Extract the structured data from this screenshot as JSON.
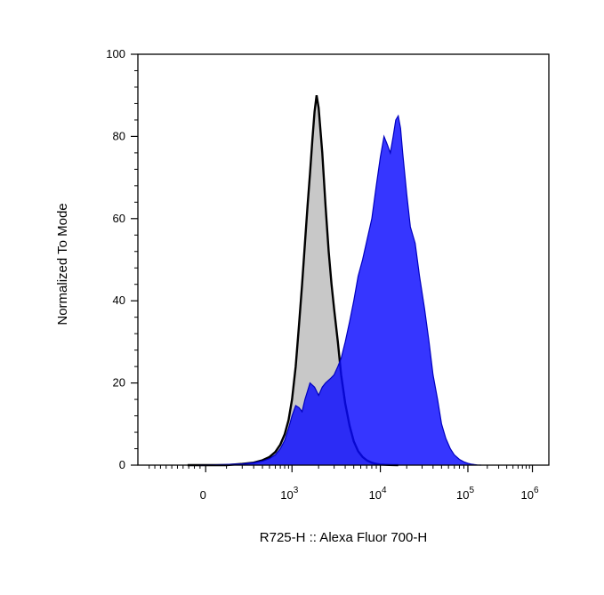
{
  "chart_data": {
    "type": "area",
    "xlabel": "R725-H :: Alexa Fluor 700-H",
    "ylabel": "Normalized To Mode",
    "x_scale": "biexponential",
    "ylim": [
      0,
      100
    ],
    "yticks": [
      0,
      20,
      40,
      60,
      80,
      100
    ],
    "xticks": [
      {
        "base": "0",
        "exp": ""
      },
      {
        "base": "10",
        "exp": "3"
      },
      {
        "base": "10",
        "exp": "4"
      },
      {
        "base": "10",
        "exp": "5"
      },
      {
        "base": "10",
        "exp": "6"
      }
    ],
    "grid": false,
    "legend": "none",
    "series": [
      {
        "color": "#c8c8c8",
        "outline": "#000000",
        "x": [
          -800,
          -500,
          -300,
          -100,
          0,
          100,
          200,
          300,
          400,
          500,
          600,
          700,
          800,
          900,
          1000,
          1100,
          1200,
          1300,
          1400,
          1500,
          1600,
          1700,
          1800,
          1900,
          2000,
          2200,
          2400,
          2600,
          2800,
          3000,
          3300,
          3600,
          4000,
          4500,
          5000,
          5600,
          6300,
          7100,
          8000,
          9000,
          10000,
          11200,
          12600,
          14000,
          16000
        ],
        "y": [
          0,
          0,
          0,
          0,
          0,
          0,
          0.3,
          0.6,
          1.2,
          2,
          3.2,
          5,
          7.5,
          11,
          16,
          24,
          34,
          44,
          54,
          63,
          71,
          79,
          86,
          90,
          87,
          76,
          63,
          52,
          44,
          38,
          30,
          22,
          15,
          9.5,
          5.8,
          3.4,
          2,
          1.1,
          0.6,
          0.3,
          0.15,
          0.08,
          0.04,
          0.02,
          0
        ]
      },
      {
        "color": "#0a0aff",
        "outline": "#0000c0",
        "x": [
          -300,
          0,
          200,
          300,
          400,
          500,
          600,
          700,
          800,
          900,
          1000,
          1100,
          1200,
          1300,
          1400,
          1500,
          1600,
          1800,
          2000,
          2200,
          2400,
          2700,
          3000,
          3300,
          3600,
          4000,
          4500,
          5000,
          5600,
          6300,
          7100,
          8000,
          9000,
          10000,
          11000,
          12000,
          13000,
          14000,
          15000,
          16000,
          17000,
          18000,
          20000,
          22000,
          25000,
          28000,
          32000,
          36000,
          40000,
          45000,
          50000,
          56000,
          63000,
          70000,
          80000,
          90000,
          100000,
          112000,
          126000,
          140000,
          160000
        ],
        "y": [
          0,
          0,
          0.3,
          0.6,
          1,
          1.6,
          2.5,
          4,
          6,
          9,
          12,
          14.5,
          14,
          13,
          16,
          18,
          20,
          19,
          17,
          19,
          20,
          21,
          22,
          24,
          26,
          30,
          35,
          40,
          46,
          50,
          55,
          60,
          68,
          75,
          80,
          78,
          76,
          80,
          84,
          85,
          82,
          76,
          66,
          58,
          54,
          46,
          38,
          30,
          22,
          16,
          10,
          6.5,
          4,
          2.5,
          1.4,
          0.8,
          0.45,
          0.25,
          0.12,
          0.05,
          0
        ]
      }
    ]
  }
}
